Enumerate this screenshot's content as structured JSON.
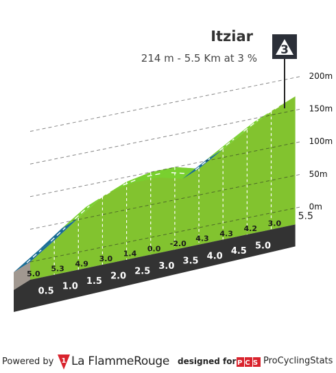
{
  "climb": {
    "name": "Itziar",
    "info": "214 m - 5.5 Km at 3 %",
    "category": "3"
  },
  "colors": {
    "green": "#82c32f",
    "steep_blue": "#1a6d96",
    "light_green_band": "#79d02f",
    "base_dark": "#333333",
    "side_gray": "#a19890",
    "category_box": "#2b2f38"
  },
  "chart_data": {
    "type": "area",
    "x_unit": "km",
    "y_unit": "m",
    "x": [
      0,
      0.5,
      1.0,
      1.5,
      2.0,
      2.5,
      3.0,
      3.5,
      4.0,
      4.5,
      5.0,
      5.5
    ],
    "y": [
      0,
      25,
      52,
      77,
      92,
      99,
      99,
      89,
      111,
      133,
      154,
      169
    ],
    "segment_gradients": [
      "5.0",
      "5.3",
      "4.9",
      "3.0",
      "1.4",
      "0.0",
      "-2.0",
      "4.3",
      "4.3",
      "4.2",
      "3.0"
    ],
    "segment_colors": [
      "steep_blue",
      "steep_blue",
      "light_green_band",
      "light_green_band",
      "light_green_band",
      "light_green_band",
      "light_green_band",
      "steep_blue",
      "light_green_band",
      "light_green_band",
      "light_green_band"
    ],
    "km_labels": [
      "0.5",
      "1.0",
      "1.5",
      "2.0",
      "2.5",
      "3.0",
      "3.5",
      "4.0",
      "4.5",
      "5.0"
    ],
    "end_label": "5.5",
    "altitude_ticks": [
      0,
      50,
      100,
      150,
      200
    ],
    "altitude_labels": [
      "0m",
      "50m",
      "100m",
      "150m",
      "200m"
    ],
    "grid": true
  },
  "footer": {
    "powered_by": "Powered by",
    "lfr_logo_text": "1",
    "lfr_name": "La FlammeRouge",
    "designed_for": "designed for",
    "pcs_logo": "PCS",
    "pcs_name": "ProCyclingStats"
  }
}
